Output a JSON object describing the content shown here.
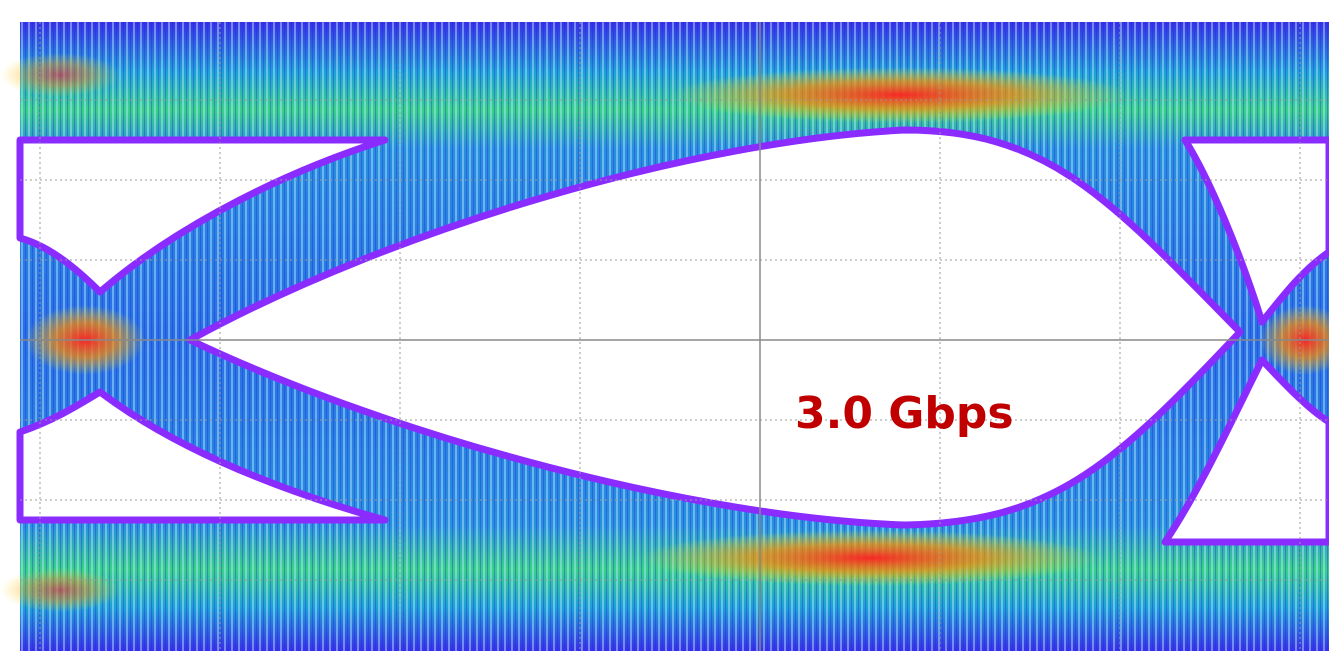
{
  "annotation": "3.0 Gbps"
}
